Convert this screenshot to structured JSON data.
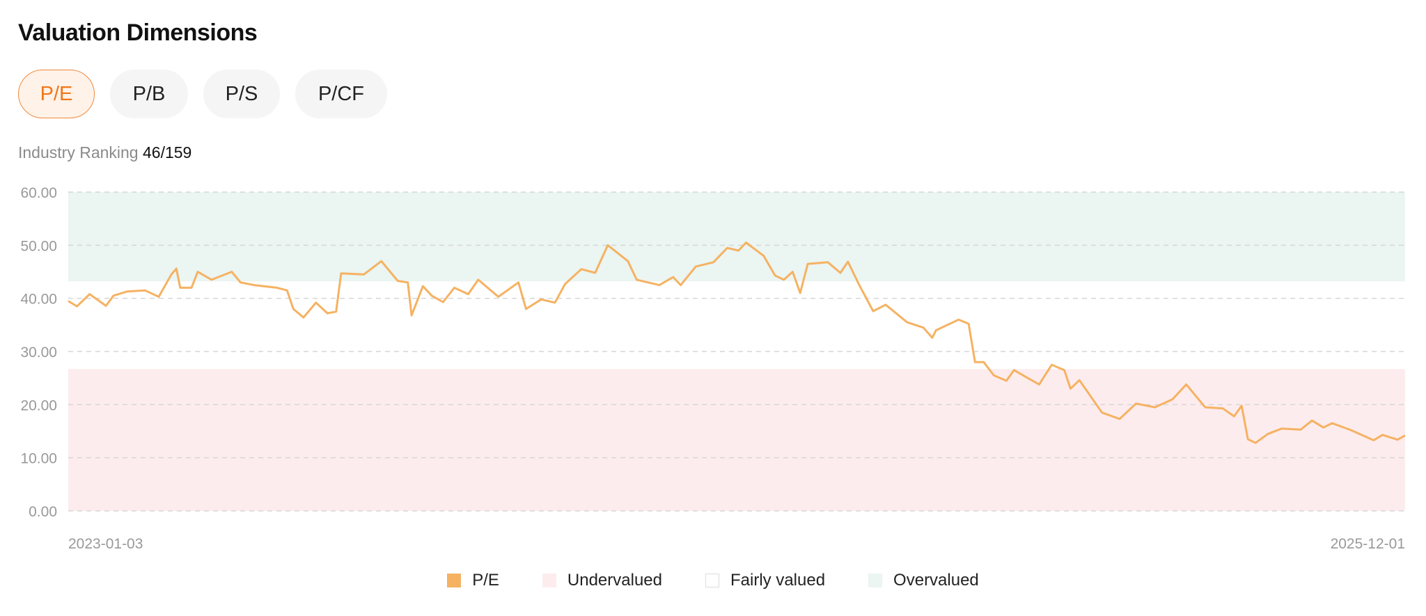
{
  "header": {
    "title": "Valuation Dimensions"
  },
  "tabs": [
    {
      "label": "P/E",
      "active": true
    },
    {
      "label": "P/B"
    },
    {
      "label": "P/S"
    },
    {
      "label": "P/CF"
    }
  ],
  "ranking": {
    "label": "Industry Ranking",
    "value": "46/159"
  },
  "colors": {
    "line": "#f5b262",
    "undervalued": "#fdecee",
    "fairly": "#ffffff",
    "overvalued": "#ebf5f2",
    "accent": "#f0761a"
  },
  "chart_data": {
    "type": "line",
    "ylim": [
      0,
      60
    ],
    "yticks": [
      "0.00",
      "10.00",
      "20.00",
      "30.00",
      "40.00",
      "50.00",
      "60.00"
    ],
    "xlim": [
      "2023-01-03",
      "2025-12-01"
    ],
    "xticks": [
      "2023-01-03",
      "2025-12-01"
    ],
    "grid": true,
    "legend_position": "bottom",
    "bands": {
      "overvalued": [
        43.2,
        60
      ],
      "undervalued": [
        0,
        26.7
      ]
    },
    "legend": [
      "P/E",
      "Undervalued",
      "Fairly valued",
      "Overvalued"
    ],
    "series": [
      {
        "name": "P/E",
        "points": [
          [
            "2023-01-03",
            39.5
          ],
          [
            "2023-01-10",
            38.5
          ],
          [
            "2023-01-20",
            40.8
          ],
          [
            "2023-02-02",
            38.6
          ],
          [
            "2023-02-08",
            40.5
          ],
          [
            "2023-02-19",
            41.3
          ],
          [
            "2023-03-05",
            41.5
          ],
          [
            "2023-03-16",
            40.3
          ],
          [
            "2023-03-26",
            44.5
          ],
          [
            "2023-03-30",
            45.6
          ],
          [
            "2023-04-02",
            42
          ],
          [
            "2023-04-11",
            42
          ],
          [
            "2023-04-16",
            45
          ],
          [
            "2023-04-27",
            43.5
          ],
          [
            "2023-05-13",
            45
          ],
          [
            "2023-05-20",
            43
          ],
          [
            "2023-05-31",
            42.5
          ],
          [
            "2023-06-18",
            42
          ],
          [
            "2023-06-26",
            41.5
          ],
          [
            "2023-07-01",
            38
          ],
          [
            "2023-07-09",
            36.4
          ],
          [
            "2023-07-19",
            39.2
          ],
          [
            "2023-07-28",
            37.2
          ],
          [
            "2023-08-04",
            37.5
          ],
          [
            "2023-08-08",
            44.7
          ],
          [
            "2023-08-26",
            44.5
          ],
          [
            "2023-09-09",
            47
          ],
          [
            "2023-09-22",
            43.3
          ],
          [
            "2023-09-30",
            43
          ],
          [
            "2023-10-03",
            36.8
          ],
          [
            "2023-10-12",
            42.3
          ],
          [
            "2023-10-19",
            40.5
          ],
          [
            "2023-10-28",
            39.3
          ],
          [
            "2023-11-06",
            42
          ],
          [
            "2023-11-17",
            40.8
          ],
          [
            "2023-11-25",
            43.5
          ],
          [
            "2023-12-11",
            40.3
          ],
          [
            "2023-12-27",
            43
          ],
          [
            "2024-01-02",
            38
          ],
          [
            "2024-01-14",
            39.8
          ],
          [
            "2024-01-25",
            39.2
          ],
          [
            "2024-02-02",
            42.7
          ],
          [
            "2024-02-15",
            45.5
          ],
          [
            "2024-02-26",
            44.8
          ],
          [
            "2024-03-07",
            50
          ],
          [
            "2024-03-23",
            47
          ],
          [
            "2024-03-30",
            43.5
          ],
          [
            "2024-04-17",
            42.5
          ],
          [
            "2024-04-28",
            44
          ],
          [
            "2024-05-04",
            42.5
          ],
          [
            "2024-05-16",
            46
          ],
          [
            "2024-05-30",
            46.8
          ],
          [
            "2024-06-10",
            49.5
          ],
          [
            "2024-06-19",
            49
          ],
          [
            "2024-06-25",
            50.5
          ],
          [
            "2024-07-09",
            48
          ],
          [
            "2024-07-18",
            44.3
          ],
          [
            "2024-07-25",
            43.5
          ],
          [
            "2024-08-01",
            45
          ],
          [
            "2024-08-07",
            41
          ],
          [
            "2024-08-13",
            46.5
          ],
          [
            "2024-08-29",
            46.8
          ],
          [
            "2024-09-08",
            44.8
          ],
          [
            "2024-09-14",
            46.9
          ],
          [
            "2024-09-23",
            42.5
          ],
          [
            "2024-10-04",
            37.6
          ],
          [
            "2024-10-14",
            38.8
          ],
          [
            "2024-10-31",
            35.5
          ],
          [
            "2024-11-13",
            34.5
          ],
          [
            "2024-11-20",
            32.6
          ],
          [
            "2024-11-23",
            34
          ],
          [
            "2024-12-11",
            36
          ],
          [
            "2024-12-19",
            35.2
          ],
          [
            "2024-12-24",
            28
          ],
          [
            "2024-12-31",
            28
          ],
          [
            "2025-01-08",
            25.5
          ],
          [
            "2025-01-18",
            24.5
          ],
          [
            "2025-01-24",
            26.5
          ],
          [
            "2025-02-04",
            25
          ],
          [
            "2025-02-13",
            23.8
          ],
          [
            "2025-02-23",
            27.5
          ],
          [
            "2025-03-05",
            26.5
          ],
          [
            "2025-03-10",
            23
          ],
          [
            "2025-03-17",
            24.6
          ],
          [
            "2025-04-04",
            18.5
          ],
          [
            "2025-04-18",
            17.3
          ],
          [
            "2025-05-01",
            20.2
          ],
          [
            "2025-05-16",
            19.5
          ],
          [
            "2025-05-30",
            21
          ],
          [
            "2025-06-10",
            23.8
          ],
          [
            "2025-06-25",
            19.5
          ],
          [
            "2025-07-09",
            19.3
          ],
          [
            "2025-07-18",
            17.8
          ],
          [
            "2025-07-24",
            19.8
          ],
          [
            "2025-07-29",
            13.5
          ],
          [
            "2025-08-04",
            12.8
          ],
          [
            "2025-08-14",
            14.5
          ],
          [
            "2025-08-25",
            15.5
          ],
          [
            "2025-09-09",
            15.3
          ],
          [
            "2025-09-18",
            17
          ],
          [
            "2025-09-27",
            15.7
          ],
          [
            "2025-10-04",
            16.5
          ],
          [
            "2025-10-19",
            15.2
          ],
          [
            "2025-11-06",
            13.3
          ],
          [
            "2025-11-13",
            14.3
          ],
          [
            "2025-11-25",
            13.4
          ],
          [
            "2025-12-01",
            14.2
          ]
        ]
      }
    ]
  }
}
